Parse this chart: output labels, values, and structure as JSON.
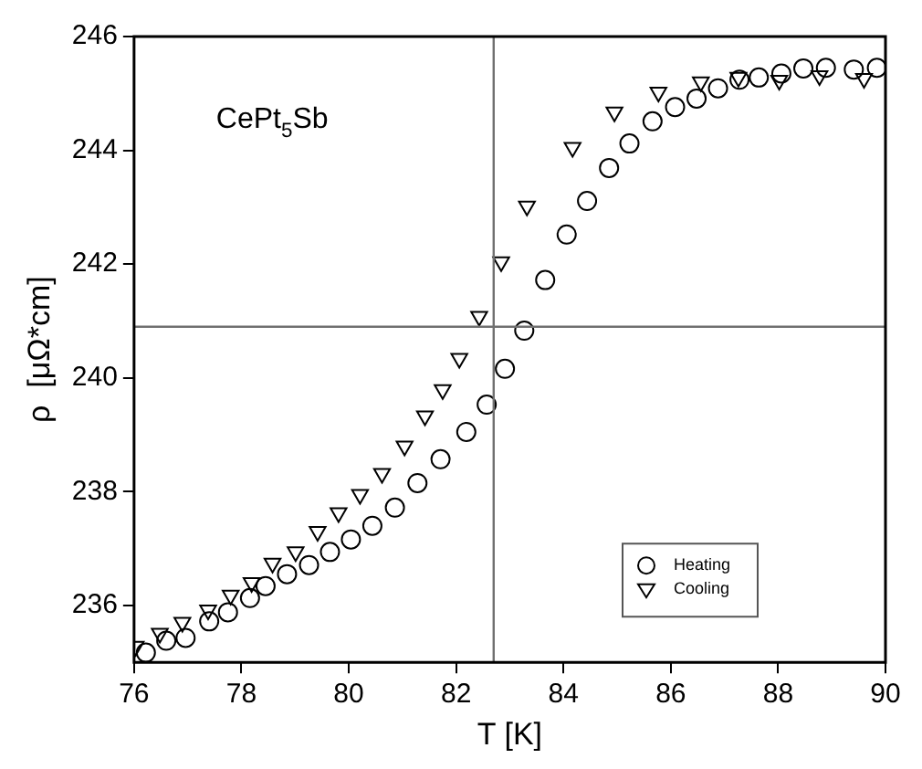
{
  "chart_data": {
    "type": "scatter",
    "xlabel": "T [K]",
    "ylabel": "ρ  [μΩ*cm]",
    "annotations": [
      "CePt$_{5}$Sb"
    ],
    "xlim": [
      76,
      90
    ],
    "xticks": [
      76,
      78,
      80,
      82,
      84,
      86,
      88,
      90
    ],
    "ylim": [
      235,
      246
    ],
    "yticks": [
      236,
      238,
      240,
      242,
      244,
      246
    ],
    "grid": false,
    "legend": "bottom right",
    "series": [
      {
        "name": "Heating",
        "color": "#000000",
        "marker": "circle",
        "x": [
          76.22,
          76.6,
          76.96,
          77.4,
          77.75,
          78.16,
          78.45,
          78.85,
          79.26,
          79.65,
          80.04,
          80.44,
          80.86,
          81.28,
          81.71,
          82.19,
          82.57,
          82.91,
          83.27,
          83.66,
          84.06,
          84.44,
          84.85,
          85.23,
          85.66,
          86.08,
          86.48,
          86.88,
          87.28,
          87.64,
          88.06,
          88.47,
          88.89,
          89.41,
          89.84
        ],
        "values": [
          235.17,
          235.38,
          235.43,
          235.72,
          235.88,
          236.13,
          236.34,
          236.55,
          236.71,
          236.94,
          237.16,
          237.4,
          237.72,
          238.15,
          238.57,
          239.05,
          239.53,
          240.16,
          240.83,
          241.72,
          242.52,
          243.11,
          243.69,
          244.12,
          244.51,
          244.76,
          244.91,
          245.09,
          245.24,
          245.28,
          245.35,
          245.44,
          245.45,
          245.42,
          245.45
        ]
      },
      {
        "name": "Cooling",
        "color": "#000000",
        "marker": "triangle",
        "x": [
          76.03,
          76.48,
          76.9,
          77.38,
          77.8,
          78.19,
          78.58,
          79.01,
          79.42,
          79.81,
          80.21,
          80.62,
          81.04,
          81.42,
          81.75,
          82.06,
          82.43,
          82.84,
          83.32,
          84.17,
          84.95,
          85.77,
          86.56,
          87.26,
          88.02,
          88.77,
          89.6
        ],
        "values": [
          235.28,
          235.51,
          235.7,
          235.92,
          236.18,
          236.4,
          236.74,
          236.94,
          237.3,
          237.63,
          237.95,
          238.32,
          238.8,
          239.33,
          239.79,
          240.34,
          241.08,
          242.04,
          243.02,
          244.05,
          244.67,
          245.02,
          245.2,
          245.28,
          245.23,
          245.31,
          245.26
        ]
      }
    ],
    "ref_lines": [
      {
        "axis": "x",
        "value": 82.7,
        "color": "#707070"
      },
      {
        "axis": "y",
        "value": 240.9,
        "color": "#707070"
      }
    ]
  }
}
